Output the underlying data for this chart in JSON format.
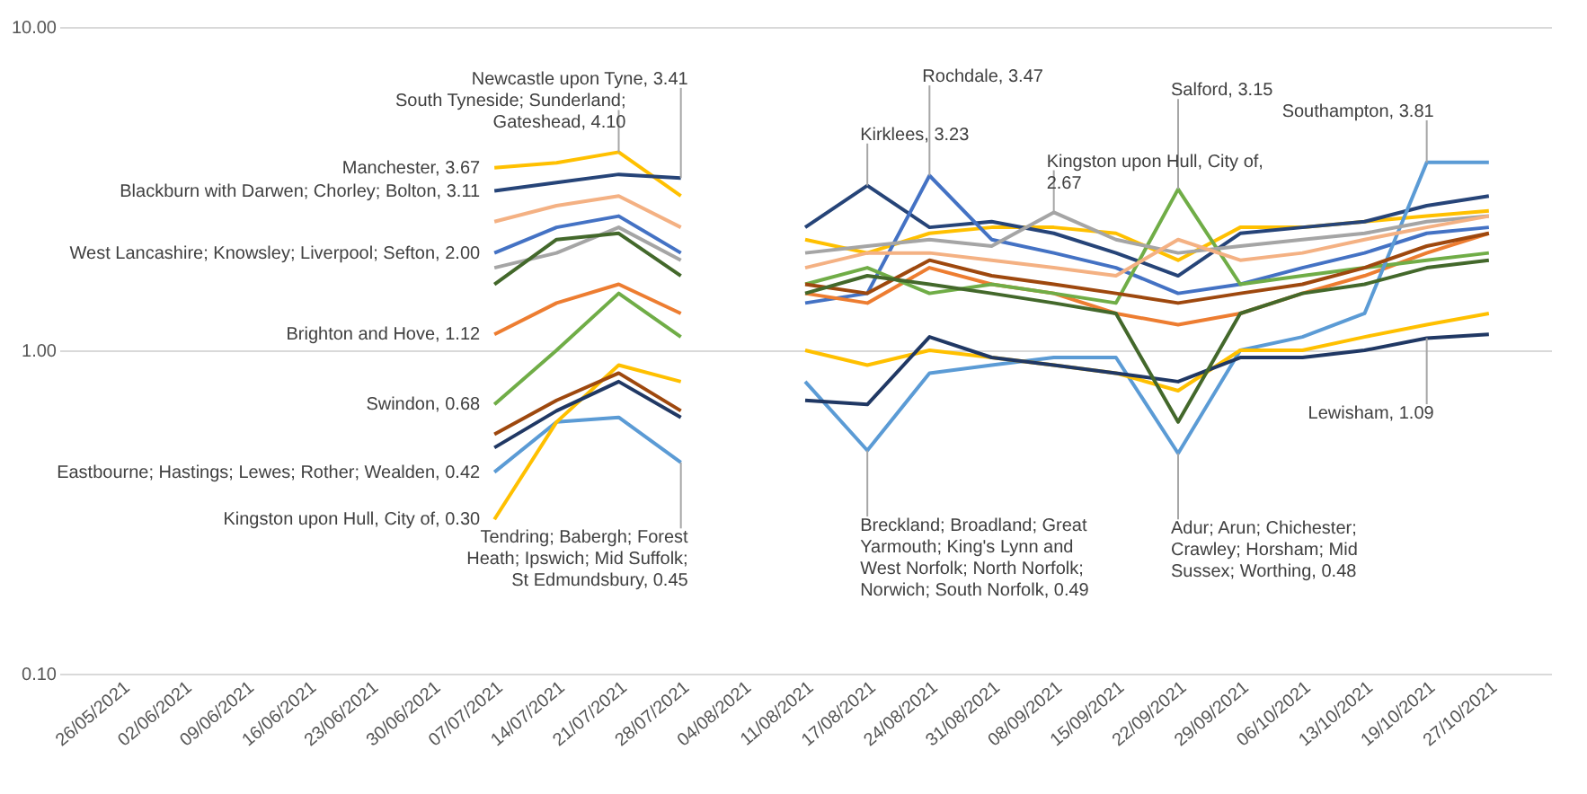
{
  "chart_data": {
    "type": "line",
    "categories": [
      "26/05/2021",
      "02/06/2021",
      "09/06/2021",
      "16/06/2021",
      "23/06/2021",
      "30/06/2021",
      "07/07/2021",
      "14/07/2021",
      "21/07/2021",
      "28/07/2021",
      "04/08/2021",
      "11/08/2021",
      "17/08/2021",
      "24/08/2021",
      "31/08/2021",
      "08/09/2021",
      "15/09/2021",
      "22/09/2021",
      "29/09/2021",
      "06/10/2021",
      "13/10/2021",
      "19/10/2021",
      "27/10/2021"
    ],
    "series": [
      {
        "color": "#ffc000",
        "values": [
          null,
          null,
          null,
          null,
          null,
          null,
          3.67,
          3.8,
          4.1,
          3.0,
          null,
          2.2,
          2.0,
          2.3,
          2.4,
          2.4,
          2.3,
          1.9,
          2.4,
          2.4,
          2.5,
          2.6,
          2.7
        ]
      },
      {
        "color": "#264478",
        "values": [
          null,
          null,
          null,
          null,
          null,
          null,
          3.11,
          3.3,
          3.5,
          3.41,
          null,
          2.4,
          3.23,
          2.4,
          2.5,
          2.3,
          2.0,
          1.7,
          2.3,
          2.4,
          2.5,
          2.8,
          3.0
        ]
      },
      {
        "color": "#4472c4",
        "values": [
          null,
          null,
          null,
          null,
          null,
          null,
          2.0,
          2.4,
          2.6,
          2.0,
          null,
          1.4,
          1.5,
          3.47,
          2.2,
          2.0,
          1.8,
          1.5,
          1.6,
          1.8,
          2.0,
          2.3,
          2.4
        ]
      },
      {
        "color": "#ed7d31",
        "values": [
          null,
          null,
          null,
          null,
          null,
          null,
          1.12,
          1.4,
          1.6,
          1.3,
          null,
          1.5,
          1.4,
          1.8,
          1.6,
          1.5,
          1.3,
          1.2,
          1.3,
          1.5,
          1.7,
          2.0,
          2.3
        ]
      },
      {
        "color": "#70ad47",
        "values": [
          null,
          null,
          null,
          null,
          null,
          null,
          0.68,
          1.0,
          1.5,
          1.1,
          null,
          1.6,
          1.8,
          1.5,
          1.6,
          1.5,
          1.4,
          3.15,
          1.6,
          1.7,
          1.8,
          1.9,
          2.0
        ]
      },
      {
        "color": "#5b9bd5",
        "values": [
          null,
          null,
          null,
          null,
          null,
          null,
          0.42,
          0.6,
          0.62,
          0.45,
          null,
          0.8,
          0.49,
          0.85,
          0.9,
          0.95,
          0.95,
          0.48,
          1.0,
          1.1,
          1.3,
          3.81,
          3.81
        ]
      },
      {
        "color": "#ffc000",
        "values": [
          null,
          null,
          null,
          null,
          null,
          null,
          0.3,
          0.6,
          0.9,
          0.8,
          null,
          1.0,
          0.9,
          1.0,
          0.95,
          0.9,
          0.85,
          0.75,
          1.0,
          1.0,
          1.1,
          1.2,
          1.3
        ]
      },
      {
        "color": "#9e480e",
        "values": [
          null,
          null,
          null,
          null,
          null,
          null,
          0.55,
          0.7,
          0.85,
          0.65,
          null,
          1.6,
          1.5,
          1.9,
          1.7,
          1.6,
          1.5,
          1.4,
          1.5,
          1.6,
          1.8,
          2.1,
          2.3
        ]
      },
      {
        "color": "#203864",
        "values": [
          null,
          null,
          null,
          null,
          null,
          null,
          0.5,
          0.65,
          0.8,
          0.62,
          null,
          0.7,
          0.68,
          1.1,
          0.95,
          0.9,
          0.85,
          0.8,
          0.95,
          0.95,
          1.0,
          1.09,
          1.12
        ]
      },
      {
        "color": "#a5a5a5",
        "values": [
          null,
          null,
          null,
          null,
          null,
          null,
          1.8,
          2.0,
          2.4,
          1.9,
          null,
          2.0,
          2.1,
          2.2,
          2.1,
          2.67,
          2.2,
          2.0,
          2.1,
          2.2,
          2.3,
          2.5,
          2.6
        ]
      },
      {
        "color": "#43682b",
        "values": [
          null,
          null,
          null,
          null,
          null,
          null,
          1.6,
          2.2,
          2.3,
          1.7,
          null,
          1.5,
          1.7,
          1.6,
          1.5,
          1.4,
          1.3,
          0.6,
          1.3,
          1.5,
          1.6,
          1.8,
          1.9
        ]
      },
      {
        "color": "#f4b183",
        "values": [
          null,
          null,
          null,
          null,
          null,
          null,
          2.5,
          2.8,
          3.0,
          2.4,
          null,
          1.8,
          2.0,
          2.0,
          1.9,
          1.8,
          1.7,
          2.2,
          1.9,
          2.0,
          2.2,
          2.4,
          2.6
        ]
      }
    ],
    "ylim": [
      0.1,
      10
    ],
    "yticks": [
      {
        "value": 0.1,
        "label": "0.10"
      },
      {
        "value": 1,
        "label": "1.00"
      },
      {
        "value": 10,
        "label": "10.00"
      }
    ],
    "log": "y",
    "grid": "y",
    "annotations": [
      {
        "text": "Manchester, 3.67",
        "x": "07/07/2021",
        "y": 3.67
      },
      {
        "text": "Blackburn with Darwen; Chorley; Bolton, 3.11",
        "x": "07/07/2021",
        "y": 3.11
      },
      {
        "text": "West Lancashire; Knowsley; Liverpool; Sefton, 2.00",
        "x": "07/07/2021",
        "y": 2.0
      },
      {
        "text": "Brighton and Hove, 1.12",
        "x": "07/07/2021",
        "y": 1.12
      },
      {
        "text": "Swindon, 0.68",
        "x": "07/07/2021",
        "y": 0.68
      },
      {
        "text": "Eastbourne; Hastings; Lewes; Rother; Wealden, 0.42",
        "x": "07/07/2021",
        "y": 0.42
      },
      {
        "text": "Kingston upon Hull, City of, 0.30",
        "x": "07/07/2021",
        "y": 0.3
      },
      {
        "text": "South Tyneside; Sunderland; Gateshead, 4.10",
        "x": "21/07/2021",
        "y": 4.1
      },
      {
        "text": "Newcastle upon Tyne, 3.41",
        "x": "28/07/2021",
        "y": 3.41
      },
      {
        "text": "Tendring; Babergh; Forest Heath; Ipswich; Mid Suffolk; St Edmundsbury, 0.45",
        "x": "28/07/2021",
        "y": 0.45
      },
      {
        "text": "Kirklees, 3.23",
        "x": "17/08/2021",
        "y": 3.23
      },
      {
        "text": "Rochdale, 3.47",
        "x": "24/08/2021",
        "y": 3.47
      },
      {
        "text": "Breckland; Broadland; Great Yarmouth; King's Lynn and West Norfolk; North Norfolk; Norwich; South Norfolk, 0.49",
        "x": "17/08/2021",
        "y": 0.49
      },
      {
        "text": "Kingston upon Hull, City of, 2.67",
        "x": "08/09/2021",
        "y": 2.67
      },
      {
        "text": "Salford, 3.15",
        "x": "22/09/2021",
        "y": 3.15
      },
      {
        "text": "Adur; Arun; Chichester; Crawley; Horsham; Mid Sussex; Worthing, 0.48",
        "x": "22/09/2021",
        "y": 0.48
      },
      {
        "text": "Southampton, 3.81",
        "x": "19/10/2021",
        "y": 3.81
      },
      {
        "text": "Lewisham, 1.09",
        "x": "19/10/2021",
        "y": 1.09
      }
    ]
  }
}
